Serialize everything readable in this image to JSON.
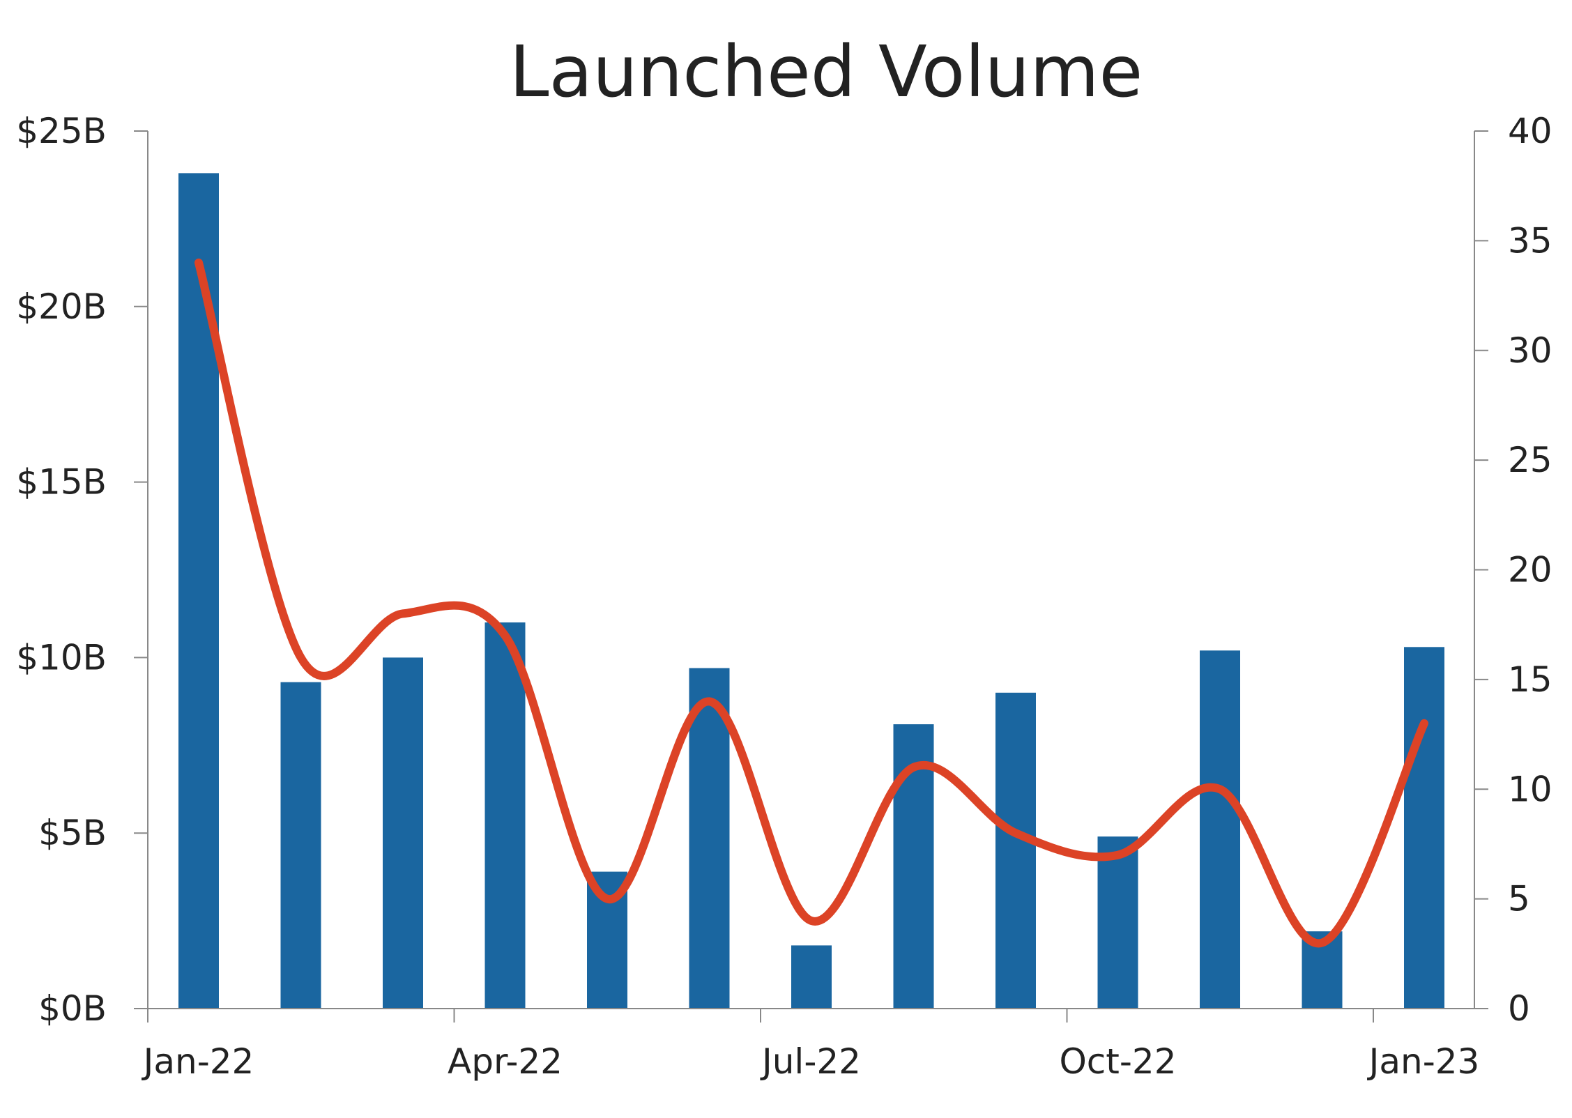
{
  "chart_data": {
    "type": "bar",
    "title": "Launched Volume",
    "colors": {
      "bar": "#1a66a0",
      "line": "#dc4326",
      "axis": "#888888"
    },
    "left_axis": {
      "range": [
        0,
        25
      ],
      "ticks": [
        0,
        5,
        10,
        15,
        20,
        25
      ],
      "tick_labels": [
        "$0B",
        "$5B",
        "$10B",
        "$15B",
        "$20B",
        "$25B"
      ]
    },
    "right_axis": {
      "range": [
        0,
        40
      ],
      "ticks": [
        0,
        5,
        10,
        15,
        20,
        25,
        30,
        35,
        40
      ],
      "tick_labels": [
        "0",
        "5",
        "10",
        "15",
        "20",
        "25",
        "30",
        "35",
        "40"
      ]
    },
    "x_axis": {
      "tick_labels": [
        "Jan-22",
        "Apr-22",
        "Jul-22",
        "Oct-22",
        "Jan-23"
      ]
    },
    "series": [
      {
        "type": "bar",
        "axis": "left",
        "values": [
          23.8,
          9.3,
          10.0,
          11.0,
          3.9,
          9.7,
          1.8,
          8.1,
          9.0,
          4.9,
          10.2,
          2.2,
          10.3
        ]
      },
      {
        "type": "line",
        "axis": "right",
        "smooth": true,
        "values": [
          34,
          16,
          18,
          17,
          5,
          14,
          4,
          11,
          8,
          7,
          10,
          3,
          13
        ]
      }
    ],
    "grid": false,
    "legend": "none"
  }
}
